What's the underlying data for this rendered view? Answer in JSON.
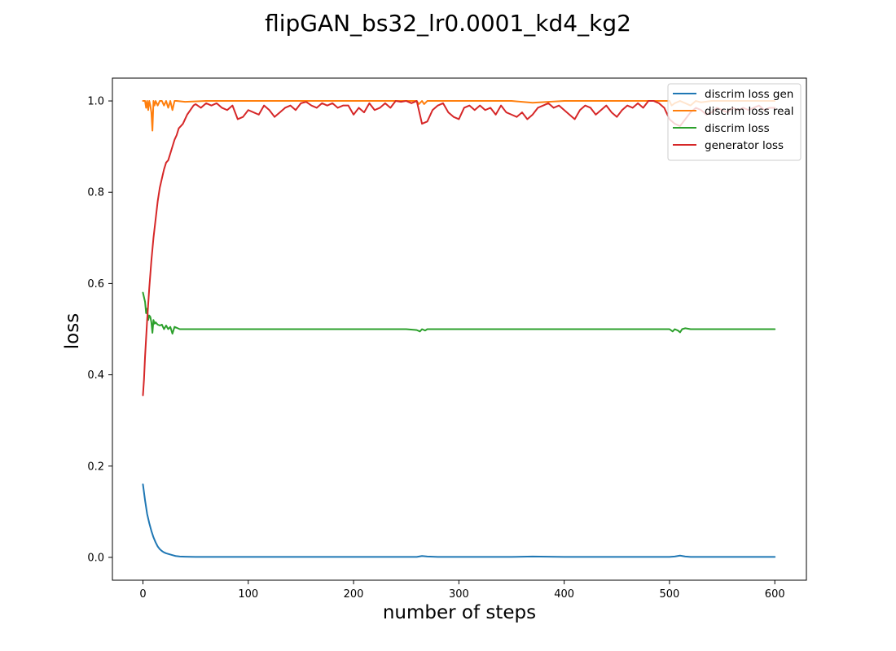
{
  "chart_data": {
    "type": "line",
    "title": "flipGAN_bs32_lr0.0001_kd4_kg2",
    "xlabel": "number of steps",
    "ylabel": "loss",
    "xlim": [
      -29,
      630
    ],
    "ylim": [
      -0.05,
      1.05
    ],
    "xticks": [
      0,
      100,
      200,
      300,
      400,
      500,
      600
    ],
    "yticks": [
      0.0,
      0.2,
      0.4,
      0.6,
      0.8,
      1.0
    ],
    "xtick_labels": [
      "0",
      "100",
      "200",
      "300",
      "400",
      "500",
      "600"
    ],
    "ytick_labels": [
      "0.0",
      "0.2",
      "0.4",
      "0.6",
      "0.8",
      "1.0"
    ],
    "grid": false,
    "legend_position": "top-right",
    "series": [
      {
        "name": "discrim loss gen",
        "color": "#1f77b4",
        "x": [
          0,
          2,
          4,
          6,
          8,
          10,
          12,
          14,
          16,
          18,
          20,
          22,
          25,
          28,
          31,
          35,
          40,
          50,
          60,
          80,
          100,
          150,
          200,
          250,
          260,
          265,
          270,
          280,
          300,
          350,
          370,
          400,
          450,
          500,
          505,
          510,
          515,
          520,
          540,
          560,
          580,
          600
        ],
        "y": [
          0.16,
          0.125,
          0.095,
          0.075,
          0.058,
          0.044,
          0.033,
          0.024,
          0.018,
          0.014,
          0.011,
          0.009,
          0.007,
          0.005,
          0.003,
          0.002,
          0.0015,
          0.001,
          0.001,
          0.001,
          0.001,
          0.001,
          0.001,
          0.001,
          0.001,
          0.003,
          0.002,
          0.001,
          0.001,
          0.001,
          0.002,
          0.001,
          0.001,
          0.001,
          0.002,
          0.004,
          0.002,
          0.001,
          0.001,
          0.001,
          0.001,
          0.001
        ]
      },
      {
        "name": "discrim loss real",
        "color": "#ff7f0e",
        "x": [
          0,
          2,
          3,
          4,
          5,
          6,
          7,
          8,
          9,
          10,
          11,
          12,
          14,
          16,
          18,
          20,
          22,
          24,
          26,
          28,
          30,
          32,
          40,
          60,
          100,
          150,
          200,
          250,
          260,
          262,
          265,
          267,
          270,
          272,
          280,
          300,
          350,
          370,
          400,
          450,
          480,
          500,
          502,
          505,
          510,
          515,
          520,
          525,
          530,
          540,
          560,
          580,
          600
        ],
        "y": [
          1.0,
          1.0,
          0.985,
          1.0,
          0.98,
          1.0,
          0.99,
          0.975,
          0.935,
          1.0,
          0.99,
          1.0,
          0.99,
          1.0,
          1.0,
          0.99,
          1.0,
          0.985,
          1.0,
          0.98,
          1.0,
          1.0,
          0.998,
          1.0,
          1.0,
          1.0,
          1.0,
          1.0,
          1.0,
          0.993,
          1.0,
          0.993,
          1.0,
          1.0,
          1.0,
          1.0,
          1.0,
          0.996,
          1.0,
          1.0,
          1.0,
          1.0,
          0.99,
          0.995,
          1.0,
          0.995,
          0.99,
          1.0,
          0.997,
          1.0,
          1.0,
          1.0,
          1.0
        ]
      },
      {
        "name": "discrim loss",
        "color": "#2ca02c",
        "x": [
          0,
          2,
          3,
          4,
          5,
          6,
          7,
          8,
          9,
          10,
          11,
          12,
          14,
          16,
          18,
          20,
          22,
          24,
          26,
          28,
          30,
          35,
          40,
          60,
          100,
          150,
          200,
          250,
          260,
          263,
          265,
          268,
          270,
          280,
          300,
          350,
          400,
          450,
          500,
          503,
          505,
          508,
          510,
          512,
          515,
          520,
          540,
          560,
          580,
          600
        ],
        "y": [
          0.58,
          0.56,
          0.535,
          0.545,
          0.52,
          0.53,
          0.527,
          0.515,
          0.492,
          0.52,
          0.512,
          0.515,
          0.51,
          0.508,
          0.51,
          0.5,
          0.508,
          0.5,
          0.505,
          0.49,
          0.505,
          0.5,
          0.5,
          0.5,
          0.5,
          0.5,
          0.5,
          0.5,
          0.498,
          0.495,
          0.5,
          0.497,
          0.5,
          0.5,
          0.5,
          0.5,
          0.5,
          0.5,
          0.5,
          0.495,
          0.5,
          0.497,
          0.493,
          0.5,
          0.502,
          0.5,
          0.5,
          0.5,
          0.5,
          0.5
        ]
      },
      {
        "name": "generator loss",
        "color": "#d62728",
        "x": [
          0,
          1,
          2,
          4,
          6,
          8,
          10,
          12,
          14,
          16,
          18,
          20,
          22,
          24,
          26,
          28,
          30,
          32,
          34,
          36,
          38,
          40,
          42,
          45,
          48,
          50,
          55,
          60,
          65,
          70,
          75,
          80,
          85,
          90,
          95,
          100,
          105,
          110,
          115,
          120,
          125,
          130,
          135,
          140,
          145,
          150,
          155,
          160,
          165,
          170,
          175,
          180,
          185,
          190,
          195,
          200,
          205,
          210,
          215,
          220,
          225,
          230,
          235,
          240,
          245,
          250,
          255,
          260,
          265,
          270,
          275,
          280,
          285,
          290,
          295,
          300,
          305,
          310,
          315,
          320,
          325,
          330,
          335,
          340,
          345,
          350,
          355,
          360,
          365,
          370,
          375,
          380,
          385,
          390,
          395,
          400,
          405,
          410,
          415,
          420,
          425,
          430,
          435,
          440,
          445,
          450,
          455,
          460,
          465,
          470,
          475,
          480,
          485,
          490,
          495,
          500,
          505,
          510,
          515,
          520,
          525,
          530,
          535,
          540,
          545,
          550,
          555,
          560,
          565,
          570,
          575,
          580,
          585,
          590,
          595,
          600
        ],
        "y": [
          0.355,
          0.39,
          0.44,
          0.52,
          0.59,
          0.65,
          0.7,
          0.74,
          0.78,
          0.81,
          0.83,
          0.85,
          0.865,
          0.87,
          0.885,
          0.9,
          0.915,
          0.925,
          0.94,
          0.945,
          0.95,
          0.96,
          0.97,
          0.98,
          0.99,
          0.993,
          0.985,
          0.995,
          0.99,
          0.995,
          0.985,
          0.98,
          0.99,
          0.96,
          0.965,
          0.98,
          0.975,
          0.97,
          0.99,
          0.98,
          0.965,
          0.975,
          0.985,
          0.99,
          0.98,
          0.995,
          0.998,
          0.99,
          0.985,
          0.995,
          0.99,
          0.995,
          0.985,
          0.99,
          0.99,
          0.97,
          0.985,
          0.975,
          0.995,
          0.98,
          0.985,
          0.995,
          0.985,
          1.0,
          0.998,
          1.0,
          0.995,
          1.0,
          0.95,
          0.955,
          0.98,
          0.99,
          0.995,
          0.975,
          0.965,
          0.96,
          0.985,
          0.99,
          0.98,
          0.99,
          0.98,
          0.985,
          0.97,
          0.99,
          0.975,
          0.97,
          0.965,
          0.975,
          0.96,
          0.97,
          0.985,
          0.99,
          0.995,
          0.985,
          0.99,
          0.98,
          0.97,
          0.96,
          0.98,
          0.99,
          0.985,
          0.97,
          0.98,
          0.99,
          0.975,
          0.965,
          0.98,
          0.99,
          0.985,
          0.995,
          0.985,
          1.0,
          1.0,
          0.995,
          0.985,
          0.96,
          0.95,
          0.945,
          0.96,
          0.975,
          0.985,
          0.98,
          0.97,
          0.975,
          0.985,
          0.98,
          0.975,
          0.985,
          0.98,
          0.985,
          0.98,
          0.985,
          0.99,
          0.98,
          0.985,
          0.985
        ]
      }
    ]
  }
}
